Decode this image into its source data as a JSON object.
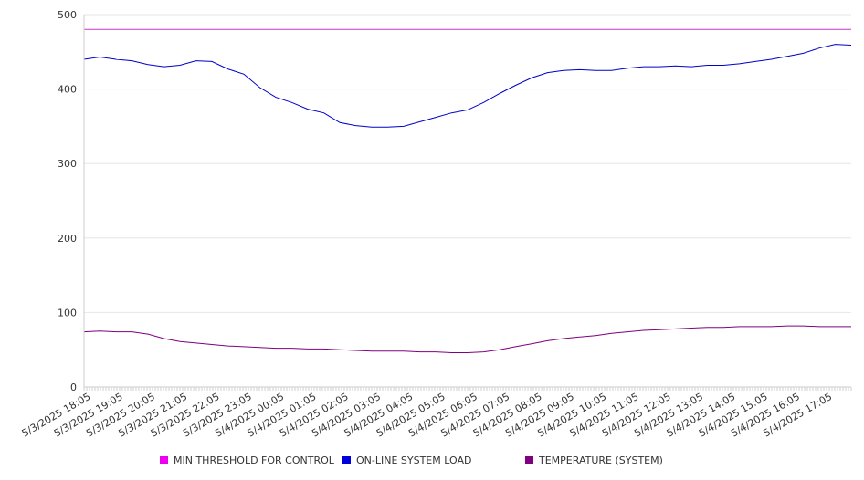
{
  "chart_data": {
    "type": "line",
    "title": "",
    "xlabel": "",
    "ylabel": "",
    "ylim": [
      0,
      500
    ],
    "y_ticks": [
      0,
      100,
      200,
      300,
      400,
      500
    ],
    "grid": true,
    "legend_position": "bottom",
    "x_tick_labels": [
      "5/3/2025 18:05",
      "5/3/2025 19:05",
      "5/3/2025 20:05",
      "5/3/2025 21:05",
      "5/3/2025 22:05",
      "5/3/2025 23:05",
      "5/4/2025 00:05",
      "5/4/2025 01:05",
      "5/4/2025 02:05",
      "5/4/2025 03:05",
      "5/4/2025 04:05",
      "5/4/2025 05:05",
      "5/4/2025 06:05",
      "5/4/2025 07:05",
      "5/4/2025 08:05",
      "5/4/2025 09:05",
      "5/4/2025 10:05",
      "5/4/2025 11:05",
      "5/4/2025 12:05",
      "5/4/2025 13:05",
      "5/4/2025 14:05",
      "5/4/2025 15:05",
      "5/4/2025 16:05",
      "5/4/2025 17:05"
    ],
    "x": [
      "5/3/2025 18:05",
      "5/3/2025 18:35",
      "5/3/2025 19:05",
      "5/3/2025 19:35",
      "5/3/2025 20:05",
      "5/3/2025 20:35",
      "5/3/2025 21:05",
      "5/3/2025 21:35",
      "5/3/2025 22:05",
      "5/3/2025 22:35",
      "5/3/2025 23:05",
      "5/3/2025 23:35",
      "5/4/2025 00:05",
      "5/4/2025 00:35",
      "5/4/2025 01:05",
      "5/4/2025 01:35",
      "5/4/2025 02:05",
      "5/4/2025 02:35",
      "5/4/2025 03:05",
      "5/4/2025 03:35",
      "5/4/2025 04:05",
      "5/4/2025 04:35",
      "5/4/2025 05:05",
      "5/4/2025 05:35",
      "5/4/2025 06:05",
      "5/4/2025 06:35",
      "5/4/2025 07:05",
      "5/4/2025 07:35",
      "5/4/2025 08:05",
      "5/4/2025 08:35",
      "5/4/2025 09:05",
      "5/4/2025 09:35",
      "5/4/2025 10:05",
      "5/4/2025 10:35",
      "5/4/2025 11:05",
      "5/4/2025 11:35",
      "5/4/2025 12:05",
      "5/4/2025 12:35",
      "5/4/2025 13:05",
      "5/4/2025 13:35",
      "5/4/2025 14:05",
      "5/4/2025 14:35",
      "5/4/2025 15:05",
      "5/4/2025 15:35",
      "5/4/2025 16:05",
      "5/4/2025 16:35",
      "5/4/2025 17:05",
      "5/4/2025 17:35",
      "5/4/2025 17:50"
    ],
    "series": [
      {
        "name": "MIN THRESHOLD FOR CONTROL",
        "color": "#cc33cc",
        "values": [
          480,
          480,
          480,
          480,
          480,
          480,
          480,
          480,
          480,
          480,
          480,
          480,
          480,
          480,
          480,
          480,
          480,
          480,
          480,
          480,
          480,
          480,
          480,
          480,
          480,
          480,
          480,
          480,
          480,
          480,
          480,
          480,
          480,
          480,
          480,
          480,
          480,
          480,
          480,
          480,
          480,
          480,
          480,
          480,
          480,
          480,
          480,
          480,
          480
        ]
      },
      {
        "name": "ON-LINE SYSTEM LOAD",
        "color": "#0000cc",
        "values": [
          440,
          443,
          440,
          438,
          433,
          430,
          432,
          438,
          437,
          427,
          420,
          402,
          389,
          382,
          373,
          368,
          355,
          351,
          349,
          349,
          350,
          356,
          362,
          368,
          372,
          382,
          394,
          405,
          415,
          422,
          425,
          426,
          425,
          425,
          428,
          430,
          430,
          431,
          430,
          432,
          432,
          434,
          437,
          440,
          444,
          448,
          455,
          460,
          459
        ]
      },
      {
        "name": "TEMPERATURE (SYSTEM)",
        "color": "#800080",
        "values": [
          74,
          75,
          74,
          74,
          71,
          65,
          61,
          59,
          57,
          55,
          54,
          53,
          52,
          52,
          51,
          51,
          50,
          49,
          48,
          48,
          48,
          47,
          47,
          46,
          46,
          47,
          50,
          54,
          58,
          62,
          65,
          67,
          69,
          72,
          74,
          76,
          77,
          78,
          79,
          80,
          80,
          81,
          81,
          81,
          82,
          82,
          81,
          81,
          81
        ]
      }
    ]
  }
}
